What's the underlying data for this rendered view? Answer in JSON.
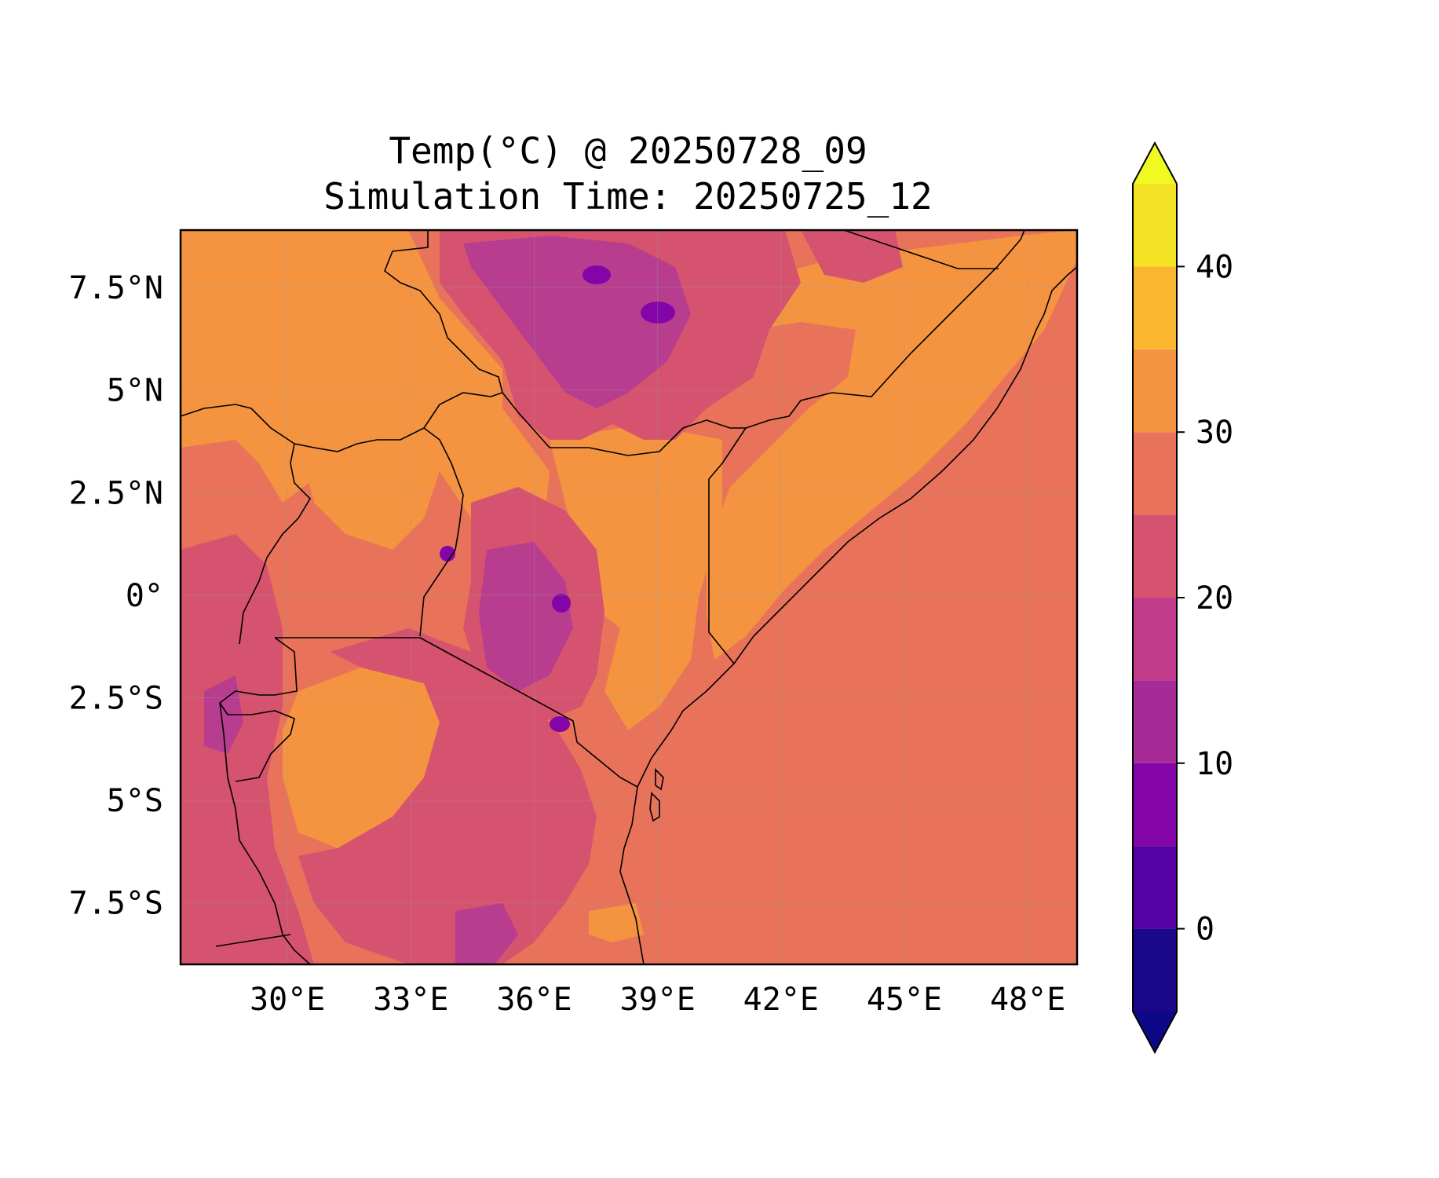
{
  "figure": {
    "title_line1": "Temp(°C) @ 20250728_09",
    "title_line2": "Simulation Time: 20250725_12"
  },
  "map": {
    "lon_range": [
      27.4,
      49.2
    ],
    "lat_range": [
      -9.0,
      8.9
    ],
    "gridlines": true,
    "lon_ticks": [
      {
        "value": 30,
        "label": "30°E"
      },
      {
        "value": 33,
        "label": "33°E"
      },
      {
        "value": 36,
        "label": "36°E"
      },
      {
        "value": 39,
        "label": "39°E"
      },
      {
        "value": 42,
        "label": "42°E"
      },
      {
        "value": 45,
        "label": "45°E"
      },
      {
        "value": 48,
        "label": "48°E"
      }
    ],
    "lat_ticks": [
      {
        "value": 7.5,
        "label": "7.5°N"
      },
      {
        "value": 5,
        "label": "5°N"
      },
      {
        "value": 2.5,
        "label": "2.5°N"
      },
      {
        "value": 0,
        "label": "0°"
      },
      {
        "value": -2.5,
        "label": "2.5°S"
      },
      {
        "value": -5,
        "label": "5°S"
      },
      {
        "value": -7.5,
        "label": "7.5°S"
      }
    ],
    "background_level_color": "#e8735a",
    "regions": [
      {
        "name": "ethiopia-highlands",
        "color": "#d5536f",
        "lon": [
          34.5,
          40.5
        ],
        "lat": [
          3.5,
          8.9
        ]
      },
      {
        "name": "ethiopia-core",
        "color": "#b83d8e",
        "lon": [
          35.8,
          39.0
        ],
        "lat": [
          4.8,
          8.3
        ]
      },
      {
        "name": "ethiopia-peaks",
        "color": "#7e0fa3",
        "lon": [
          38.2,
          39.2
        ],
        "lat": [
          6.9,
          7.9
        ]
      },
      {
        "name": "kenya-highlands",
        "color": "#d5536f",
        "lon": [
          34.6,
          38.2
        ],
        "lat": [
          -4.5,
          1.5
        ]
      },
      {
        "name": "kenya-peaks",
        "color": "#b83d8e",
        "lon": [
          36.2,
          37.8
        ],
        "lat": [
          -3.4,
          0.5
        ]
      },
      {
        "name": "tanzania-interior",
        "color": "#d5536f",
        "lon": [
          29.5,
          38.5
        ],
        "lat": [
          -9.0,
          -2.6
        ]
      },
      {
        "name": "rift-lakes",
        "color": "#d5536f",
        "lon": [
          27.4,
          31.2
        ],
        "lat": [
          -9.0,
          0.5
        ]
      }
    ]
  },
  "colorbar": {
    "levels": [
      -5,
      0,
      5,
      10,
      15,
      20,
      25,
      30,
      35,
      40,
      45
    ],
    "colors": [
      "#1a0889",
      "#5601a4",
      "#8305a7",
      "#a62b96",
      "#c13c8b",
      "#d5536f",
      "#e8735a",
      "#f59440",
      "#fbb62f",
      "#f4e325"
    ],
    "under_color": "#0d0887",
    "over_color": "#f0f921",
    "extend": "both",
    "tick_labels": [
      {
        "value": 0,
        "label": "0"
      },
      {
        "value": 10,
        "label": "10"
      },
      {
        "value": 20,
        "label": "20"
      },
      {
        "value": 30,
        "label": "30"
      },
      {
        "value": 40,
        "label": "40"
      }
    ]
  }
}
